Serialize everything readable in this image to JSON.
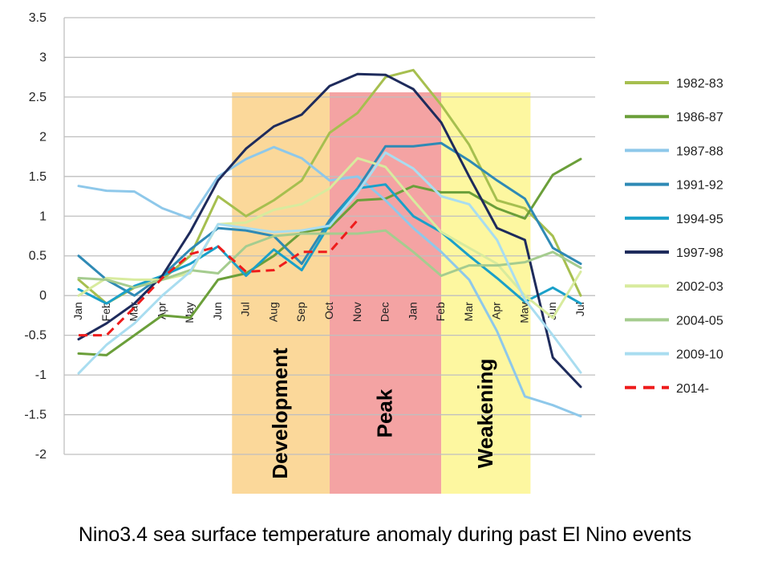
{
  "caption": "Nino3.4 sea surface temperature anomaly during past El Nino events",
  "chart_data": {
    "type": "line",
    "x": [
      "Jan",
      "Feb",
      "Mar",
      "Apr",
      "May",
      "Jun",
      "Jul",
      "Aug",
      "Sep",
      "Oct",
      "Nov",
      "Dec",
      "Jan",
      "Feb",
      "Mar",
      "Apr",
      "May",
      "Jun",
      "Jul"
    ],
    "ylim": [
      -2,
      3.5
    ],
    "yticks": [
      "3.5",
      "3",
      "2.5",
      "2",
      "1.5",
      "1",
      "0.5",
      "0",
      "-0.5",
      "-1",
      "-1.5",
      "-2"
    ],
    "grid": true,
    "legend_position": "right",
    "phases": [
      {
        "label": "Development",
        "from": 5.5,
        "to": 9,
        "color": "#fbd89a"
      },
      {
        "label": "Peak",
        "from": 9,
        "to": 13,
        "color": "#f4a3a3"
      },
      {
        "label": "Weakening",
        "from": 13,
        "to": 16.2,
        "color": "#fdf7a0"
      }
    ],
    "series": [
      {
        "name": "1982-83",
        "color": "#a6bf4f",
        "dash": false,
        "values": [
          0.2,
          -0.1,
          0.1,
          0.2,
          0.5,
          1.25,
          1.0,
          1.2,
          1.45,
          2.05,
          2.3,
          2.75,
          2.84,
          2.4,
          1.9,
          1.2,
          1.1,
          0.75,
          0.0
        ]
      },
      {
        "name": "1986-87",
        "color": "#6b9f3a",
        "dash": false,
        "values": [
          -0.73,
          -0.75,
          -0.5,
          -0.25,
          -0.28,
          0.2,
          0.28,
          0.5,
          0.8,
          0.85,
          1.2,
          1.22,
          1.38,
          1.3,
          1.3,
          1.1,
          0.97,
          1.52,
          1.72
        ]
      },
      {
        "name": "1987-88",
        "color": "#8ec8ea",
        "dash": false,
        "values": [
          1.38,
          1.32,
          1.31,
          1.1,
          0.97,
          1.5,
          1.72,
          1.87,
          1.73,
          1.45,
          1.5,
          1.2,
          0.85,
          0.55,
          0.2,
          -0.45,
          -1.27,
          -1.38,
          -1.52
        ]
      },
      {
        "name": "1991-92",
        "color": "#2f8ab5",
        "dash": false,
        "values": [
          0.5,
          0.2,
          0.0,
          0.25,
          0.58,
          0.85,
          0.82,
          0.75,
          0.4,
          0.95,
          1.35,
          1.88,
          1.88,
          1.92,
          1.7,
          1.45,
          1.22,
          0.6,
          0.4
        ]
      },
      {
        "name": "1994-95",
        "color": "#1aa0c9",
        "dash": false,
        "values": [
          0.08,
          -0.1,
          0.12,
          0.25,
          0.4,
          0.62,
          0.25,
          0.58,
          0.32,
          0.9,
          1.35,
          1.4,
          1.0,
          0.8,
          0.5,
          0.22,
          -0.08,
          0.1,
          -0.1
        ]
      },
      {
        "name": "1997-98",
        "color": "#1e2b5c",
        "dash": false,
        "values": [
          -0.55,
          -0.35,
          -0.1,
          0.25,
          0.8,
          1.45,
          1.85,
          2.13,
          2.28,
          2.64,
          2.79,
          2.78,
          2.6,
          2.18,
          1.5,
          0.85,
          0.7,
          -0.78,
          -1.15
        ]
      },
      {
        "name": "2002-03",
        "color": "#d8eb9e",
        "dash": false,
        "values": [
          0.0,
          0.22,
          0.2,
          0.2,
          0.28,
          0.9,
          0.92,
          1.08,
          1.15,
          1.35,
          1.73,
          1.62,
          1.2,
          0.8,
          0.6,
          0.4,
          0.0,
          -0.28,
          0.3
        ]
      },
      {
        "name": "2004-05",
        "color": "#a5cc8f",
        "dash": false,
        "values": [
          0.22,
          0.2,
          0.1,
          0.2,
          0.32,
          0.28,
          0.62,
          0.75,
          0.78,
          0.78,
          0.78,
          0.82,
          0.55,
          0.25,
          0.38,
          0.38,
          0.42,
          0.55,
          0.35
        ]
      },
      {
        "name": "2009-10",
        "color": "#a9ddf0",
        "dash": false,
        "values": [
          -0.98,
          -0.62,
          -0.35,
          0.0,
          0.3,
          0.9,
          0.85,
          0.8,
          0.82,
          0.88,
          1.3,
          1.8,
          1.6,
          1.25,
          1.15,
          0.7,
          -0.05,
          -0.5,
          -0.97
        ]
      },
      {
        "name": "2014-",
        "color": "#ee1c1c",
        "dash": true,
        "values": [
          -0.5,
          -0.5,
          -0.15,
          0.22,
          0.52,
          0.62,
          0.3,
          0.32,
          0.55,
          0.55,
          0.95,
          null,
          null,
          null,
          null,
          null,
          null,
          null,
          null
        ]
      }
    ]
  }
}
